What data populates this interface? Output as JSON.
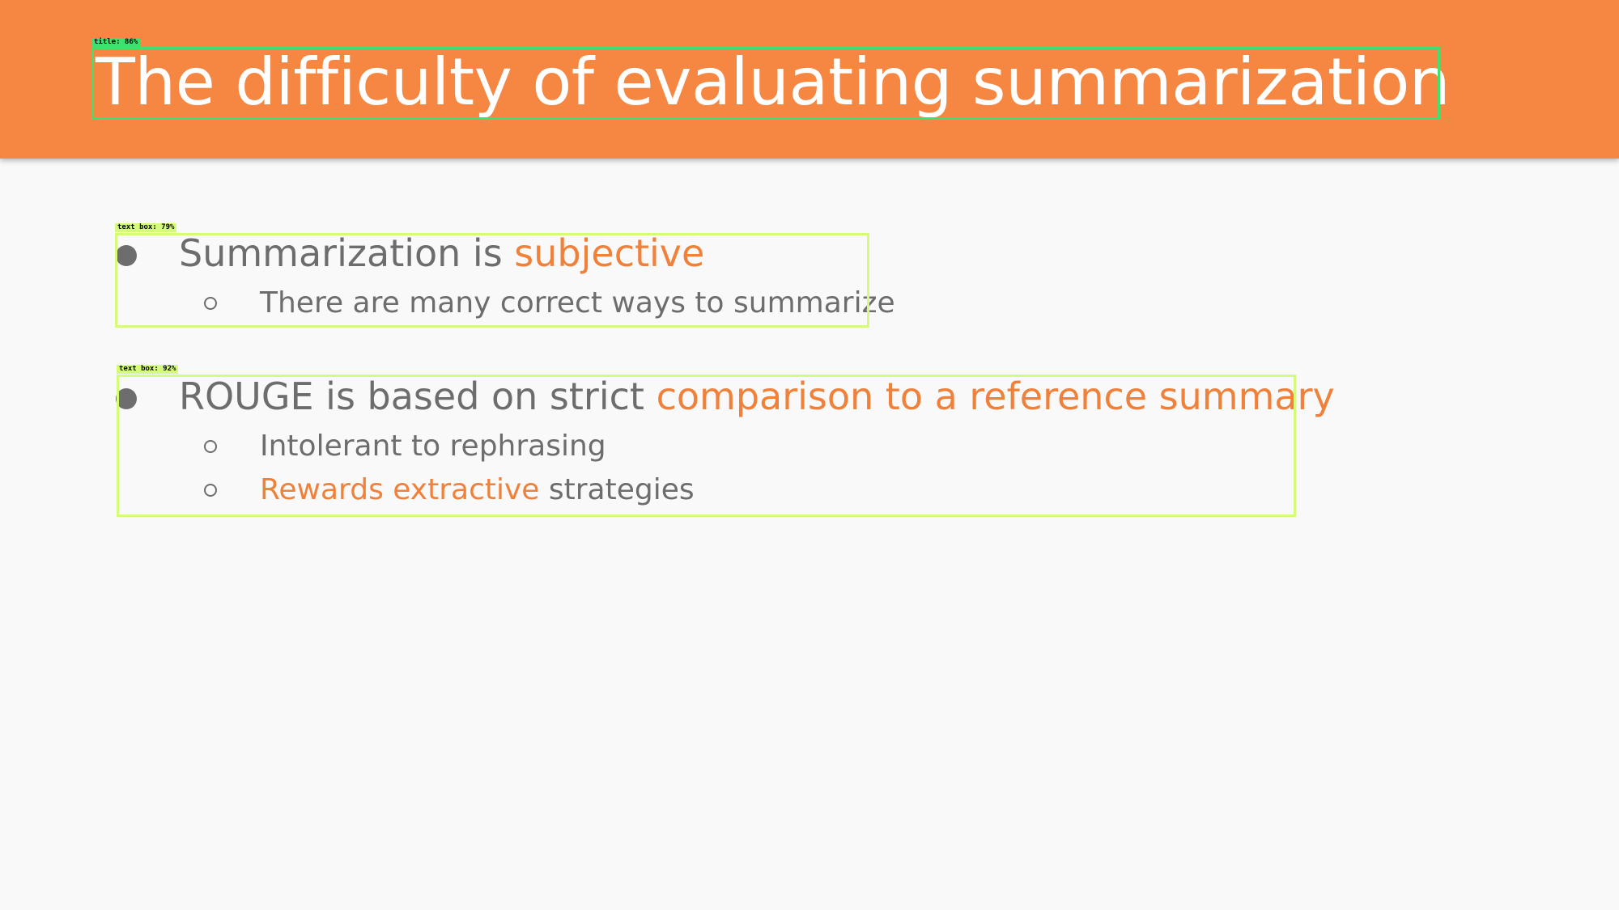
{
  "slide": {
    "title": "The difficulty of evaluating summarization",
    "bullets": [
      {
        "text_plain": "Summarization is ",
        "text_accent": "subjective",
        "sub_bullets": [
          {
            "text_plain": "There are many correct ways to summarize"
          }
        ]
      },
      {
        "text_plain": "ROUGE is based on strict ",
        "text_accent": "comparison to a reference summary",
        "sub_bullets": [
          {
            "text_plain": "Intolerant to rephrasing"
          },
          {
            "text_accent": "Rewards extractive",
            "text_plain": " strategies"
          }
        ]
      }
    ]
  },
  "detections": [
    {
      "label": "title: 86%",
      "color": "#3ee06e"
    },
    {
      "label": "text box: 79%",
      "color": "#d4fb79"
    },
    {
      "label": "text box: 92%",
      "color": "#d4fb79"
    }
  ],
  "colors": {
    "header": "#f58742",
    "background": "#f9f9f9",
    "body_text": "#6d6d6d",
    "accent_text": "#f0813a",
    "title_text": "#ffffff"
  }
}
